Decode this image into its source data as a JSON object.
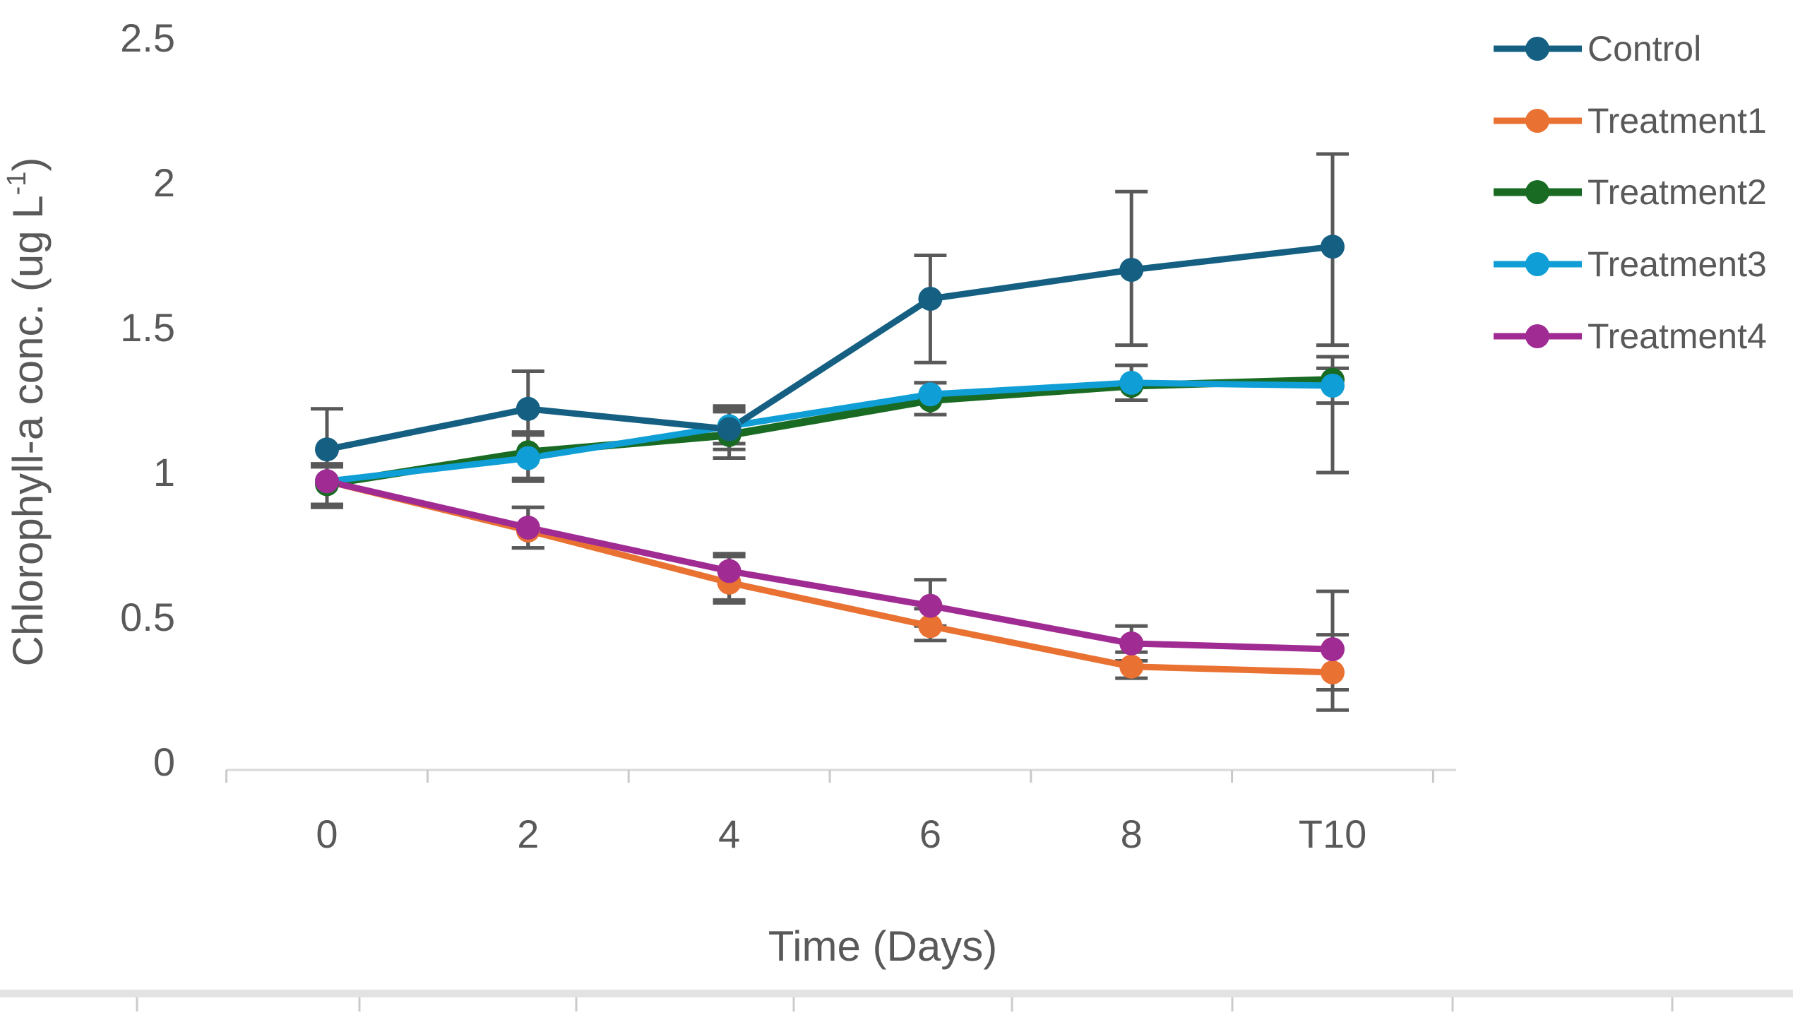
{
  "chart_data": {
    "type": "line",
    "title": "",
    "xlabel": "Time (Days)",
    "ylabel": {
      "text": "Chlorophyll-a conc. (ug L",
      "superscript": "-1",
      "suffix": ")"
    },
    "categories": [
      "0",
      "2",
      "4",
      "6",
      "8",
      "T10"
    ],
    "ylim": [
      0,
      2.5
    ],
    "yticks": [
      {
        "value": 2.5,
        "label": "2.5"
      },
      {
        "value": 2,
        "label": "2"
      },
      {
        "value": 1.5,
        "label": "1.5"
      },
      {
        "value": 1,
        "label": "1"
      },
      {
        "value": 0.5,
        "label": "0.5"
      },
      {
        "value": 0,
        "label": "0"
      }
    ],
    "grid": false,
    "legend_position": "right",
    "axis_line_color": "#D9D9D9",
    "tick_color": "#C9C9C9",
    "text_color": "#595959",
    "error_bar_color": "#595959",
    "series": [
      {
        "name": "Treatment1",
        "color": "#E97132",
        "line_width": 9,
        "values": [
          0.97,
          0.8,
          0.62,
          0.47,
          0.33,
          0.31
        ],
        "err_up": [
          0.06,
          0.08,
          0.09,
          0.06,
          0.05,
          0.13
        ],
        "err_down": [
          0.08,
          0.06,
          0.07,
          0.05,
          0.04,
          0.13
        ]
      },
      {
        "name": "Treatment2",
        "color": "#196B24",
        "line_width": 11,
        "values": [
          0.96,
          1.07,
          1.13,
          1.25,
          1.3,
          1.32
        ],
        "err_up": [
          0.06,
          0.07,
          0.08,
          0.06,
          0.07,
          0.08
        ],
        "err_down": [
          0.08,
          0.09,
          0.08,
          0.05,
          0.05,
          0.08
        ]
      },
      {
        "name": "Treatment3",
        "color": "#0F9ED5",
        "line_width": 9,
        "values": [
          0.97,
          1.05,
          1.16,
          1.27,
          1.31,
          1.3
        ],
        "err_up": [
          0.05,
          0.08,
          0.06,
          0.04,
          0.06,
          0.06
        ],
        "err_down": [
          0.08,
          0.08,
          0.06,
          0.07,
          0.06,
          0.3
        ]
      },
      {
        "name": "Treatment4",
        "color": "#A02B93",
        "line_width": 9,
        "values": [
          0.97,
          0.81,
          0.66,
          0.54,
          0.41,
          0.39
        ],
        "err_up": [
          0.05,
          0.07,
          0.06,
          0.09,
          0.06,
          0.2
        ],
        "err_down": [
          0.08,
          0.07,
          0.1,
          0.07,
          0.06,
          0.14
        ]
      },
      {
        "name": "Control",
        "color": "#156082",
        "line_width": 9,
        "values": [
          1.08,
          1.22,
          1.15,
          1.6,
          1.7,
          1.78
        ],
        "err_up": [
          0.14,
          0.13,
          0.08,
          0.15,
          0.27,
          0.32
        ],
        "err_down": [
          0.05,
          0.09,
          0.07,
          0.22,
          0.26,
          0.34
        ]
      }
    ],
    "legend_order": [
      "Control",
      "Treatment1",
      "Treatment2",
      "Treatment3",
      "Treatment4"
    ]
  },
  "bottom_strip": {
    "band_color": "#E3E3E3",
    "tick_color": "#CBCBCB"
  }
}
